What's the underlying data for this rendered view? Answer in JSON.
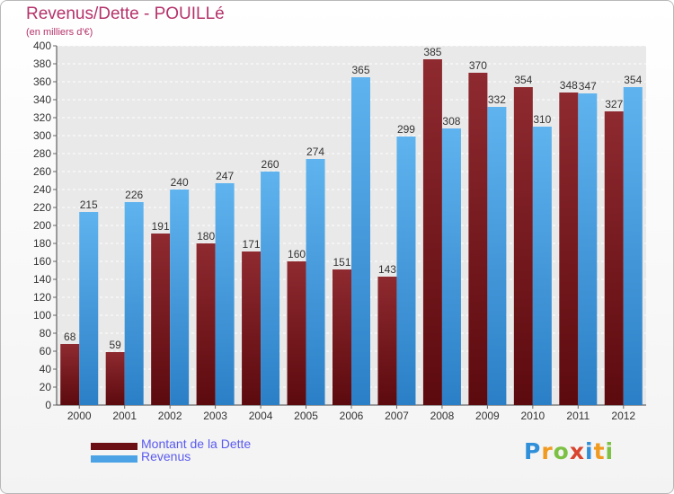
{
  "header": {
    "title": "Revenus/Dette - POUILLé",
    "subtitle": "(en milliers d'€)"
  },
  "chart_data": {
    "type": "bar",
    "categories": [
      "2000",
      "2001",
      "2002",
      "2003",
      "2004",
      "2005",
      "2006",
      "2007",
      "2008",
      "2009",
      "2010",
      "2011",
      "2012"
    ],
    "series": [
      {
        "name": "Montant de la Dette",
        "color": "#7a1e24",
        "values": [
          68,
          59,
          191,
          180,
          171,
          160,
          151,
          143,
          385,
          370,
          354,
          348,
          327
        ]
      },
      {
        "name": "Revenus",
        "color": "#4ba3e6",
        "values": [
          215,
          226,
          240,
          247,
          260,
          274,
          365,
          299,
          308,
          332,
          310,
          347,
          354
        ]
      }
    ],
    "ylim": [
      0,
      400
    ],
    "ytick_step": 20,
    "grid": true,
    "legend_position": "bottom-left"
  },
  "legend": {
    "items": [
      {
        "label": "Montant de la Dette",
        "color": "#6b0f14"
      },
      {
        "label": "Revenus",
        "color": "#4ba3e6"
      }
    ]
  },
  "logo": {
    "letters": [
      "P",
      "r",
      "o",
      "x",
      "i",
      "t",
      "i"
    ],
    "colors": [
      "#2f8fd8",
      "#f09a20",
      "#7cc143",
      "#d9442e",
      "#2f8fd8",
      "#f09a20",
      "#7cc143"
    ]
  }
}
